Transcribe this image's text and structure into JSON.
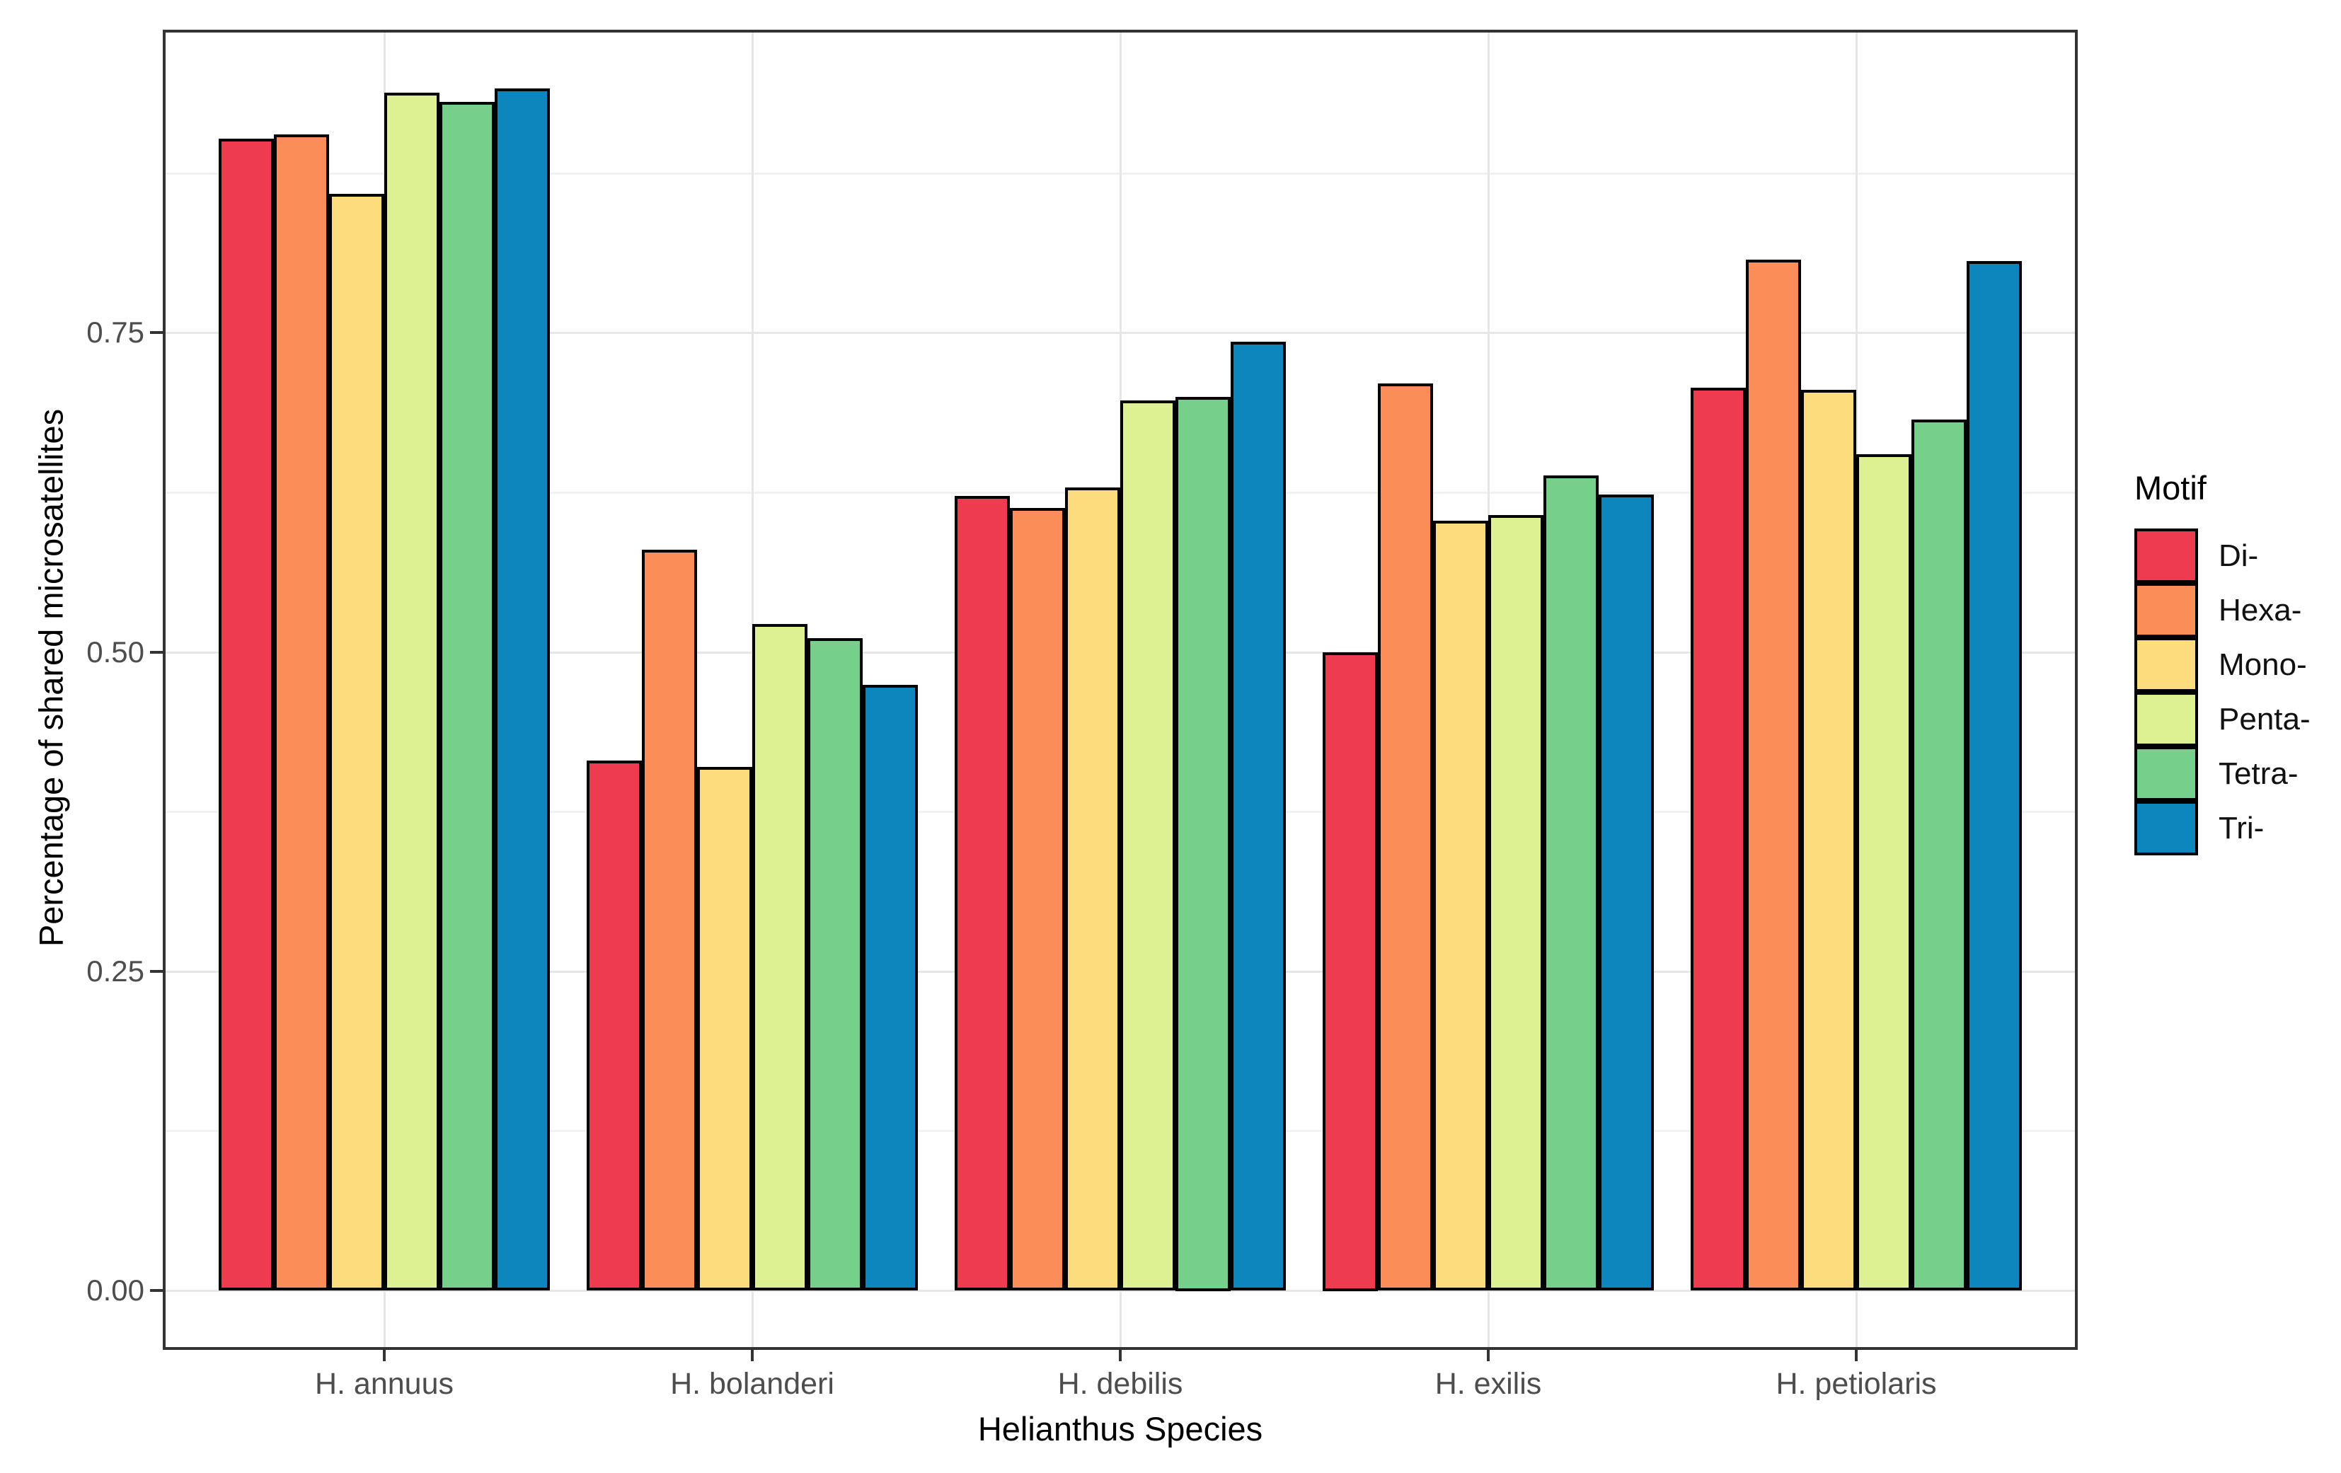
{
  "chart_data": {
    "type": "bar",
    "subtype": "grouped",
    "title": "",
    "xlabel": "Helianthus Species",
    "ylabel": "Percentage of shared microsatellites",
    "categories": [
      "H. annuus",
      "H. bolanderi",
      "H. debilis",
      "H. exilis",
      "H. petiolaris"
    ],
    "series": [
      {
        "name": "Di-",
        "color": "#EE3B50",
        "values": [
          0.902,
          0.415,
          0.622,
          0.5,
          0.707
        ]
      },
      {
        "name": "Hexa-",
        "color": "#FB8D58",
        "values": [
          0.905,
          0.58,
          0.613,
          0.71,
          0.807
        ]
      },
      {
        "name": "Mono-",
        "color": "#FDDC7E",
        "values": [
          0.859,
          0.41,
          0.629,
          0.603,
          0.705
        ]
      },
      {
        "name": "Penta-",
        "color": "#DDF092",
        "values": [
          0.938,
          0.522,
          0.697,
          0.607,
          0.655
        ]
      },
      {
        "name": "Tetra-",
        "color": "#77CF8C",
        "values": [
          0.931,
          0.511,
          0.7,
          0.638,
          0.682
        ]
      },
      {
        "name": "Tri-",
        "color": "#0C86BD",
        "values": [
          0.941,
          0.474,
          0.743,
          0.623,
          0.806
        ]
      }
    ],
    "ylim": [
      0,
      0.99
    ],
    "yticks": [
      0,
      0.25,
      0.5,
      0.75
    ],
    "ytick_labels": [
      "0.00",
      "0.25",
      "0.50",
      "0.75"
    ],
    "minor_yticks": [
      0.125,
      0.375,
      0.625,
      0.875
    ],
    "grid": {
      "horizontal_major": true,
      "horizontal_minor": true,
      "vertical_at_category_centers": true
    },
    "legend": {
      "title": "Motif",
      "position": "right"
    },
    "style": {
      "bar_outline": "#000000",
      "panel_border": "#333333",
      "grid_major": "#e6e6e6",
      "grid_minor": "#f1f1f1",
      "tick_color": "#333333",
      "tick_label_color": "#4d4d4d",
      "title_color": "#000000"
    }
  }
}
